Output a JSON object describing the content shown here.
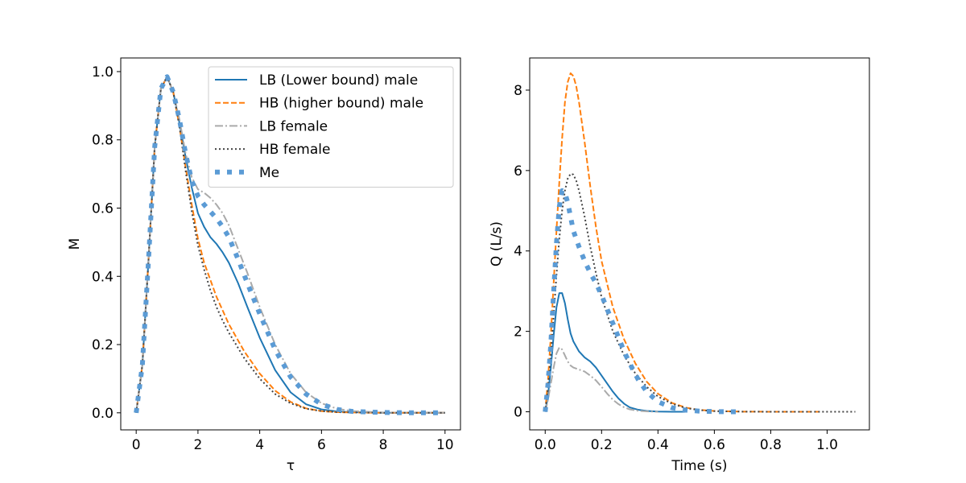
{
  "chart_data": [
    {
      "type": "line",
      "title": "",
      "xlabel": "τ",
      "ylabel": "M",
      "xlim": [
        -0.5,
        10.5
      ],
      "ylim": [
        -0.05,
        1.04
      ],
      "xticks": [
        0,
        2,
        4,
        6,
        8,
        10
      ],
      "xtick_labels": [
        "0",
        "2",
        "4",
        "6",
        "8",
        "10"
      ],
      "yticks": [
        0.0,
        0.2,
        0.4,
        0.6,
        0.8,
        1.0
      ],
      "ytick_labels": [
        "0.0",
        "0.2",
        "0.4",
        "0.6",
        "0.8",
        "1.0"
      ],
      "grid": false,
      "legend_placement": "top-right",
      "series": [
        {
          "name": "LB (Lower bound) male",
          "color": "#1f77b4",
          "dash": "solid",
          "x": [
            0,
            0.2,
            0.4,
            0.6,
            0.8,
            1.0,
            1.2,
            1.4,
            1.6,
            1.8,
            2.0,
            2.2,
            2.4,
            2.6,
            2.8,
            3.0,
            3.3,
            3.6,
            4.0,
            4.5,
            5.0,
            5.5,
            6.0,
            6.5,
            7.0,
            8.0,
            9.0,
            10.0
          ],
          "y": [
            0.0,
            0.14,
            0.45,
            0.78,
            0.95,
            0.985,
            0.94,
            0.85,
            0.75,
            0.66,
            0.585,
            0.545,
            0.515,
            0.495,
            0.47,
            0.44,
            0.38,
            0.31,
            0.22,
            0.125,
            0.06,
            0.025,
            0.01,
            0.004,
            0.002,
            0.0,
            0.0,
            0.0
          ]
        },
        {
          "name": "HB (higher bound) male",
          "color": "#ff7f0e",
          "dash": "dashed",
          "x": [
            0,
            0.2,
            0.4,
            0.6,
            0.8,
            1.0,
            1.2,
            1.4,
            1.6,
            1.8,
            2.0,
            2.2,
            2.4,
            2.6,
            2.8,
            3.0,
            3.5,
            4.0,
            4.5,
            5.0,
            5.5,
            6.0,
            6.5,
            7.0,
            8.0,
            9.0,
            10.0
          ],
          "y": [
            0.0,
            0.14,
            0.45,
            0.78,
            0.95,
            0.985,
            0.94,
            0.84,
            0.72,
            0.61,
            0.51,
            0.44,
            0.39,
            0.34,
            0.3,
            0.26,
            0.18,
            0.115,
            0.065,
            0.032,
            0.013,
            0.005,
            0.002,
            0.001,
            0.0,
            0.0,
            0.0
          ]
        },
        {
          "name": "LB female",
          "color": "#aaaaaa",
          "dash": "dashdot",
          "x": [
            0,
            0.2,
            0.4,
            0.6,
            0.8,
            1.0,
            1.2,
            1.4,
            1.6,
            1.8,
            2.0,
            2.2,
            2.4,
            2.6,
            2.8,
            3.0,
            3.3,
            3.6,
            4.0,
            4.5,
            5.0,
            5.5,
            6.0,
            6.5,
            7.0,
            8.0,
            9.0,
            10.0
          ],
          "y": [
            0.0,
            0.14,
            0.45,
            0.78,
            0.95,
            0.985,
            0.94,
            0.86,
            0.76,
            0.69,
            0.655,
            0.645,
            0.63,
            0.61,
            0.585,
            0.55,
            0.48,
            0.41,
            0.31,
            0.2,
            0.115,
            0.06,
            0.028,
            0.012,
            0.005,
            0.001,
            0.0,
            0.0
          ]
        },
        {
          "name": "HB female",
          "color": "#444444",
          "dash": "dotted",
          "x": [
            0,
            0.2,
            0.4,
            0.6,
            0.8,
            1.0,
            1.2,
            1.4,
            1.6,
            1.8,
            2.0,
            2.2,
            2.4,
            2.6,
            2.8,
            3.0,
            3.5,
            4.0,
            4.5,
            5.0,
            5.5,
            6.0,
            6.5,
            7.0,
            8.0,
            9.0,
            10.0
          ],
          "y": [
            0.0,
            0.14,
            0.45,
            0.78,
            0.95,
            0.985,
            0.94,
            0.84,
            0.71,
            0.59,
            0.49,
            0.42,
            0.36,
            0.31,
            0.27,
            0.235,
            0.16,
            0.1,
            0.055,
            0.028,
            0.012,
            0.005,
            0.002,
            0.001,
            0.0,
            0.0,
            0.0
          ]
        },
        {
          "name": "Me",
          "color": "#5b9bd5",
          "dash": "thickdots",
          "x": [
            0,
            0.2,
            0.4,
            0.6,
            0.8,
            1.0,
            1.2,
            1.4,
            1.6,
            1.8,
            2.0,
            2.2,
            2.4,
            2.6,
            2.8,
            3.0,
            3.3,
            3.6,
            4.0,
            4.5,
            5.0,
            5.5,
            6.0,
            6.5,
            7.0,
            8.0,
            9.0,
            10.0
          ],
          "y": [
            0.0,
            0.14,
            0.45,
            0.78,
            0.95,
            0.985,
            0.94,
            0.86,
            0.76,
            0.68,
            0.635,
            0.61,
            0.59,
            0.57,
            0.545,
            0.515,
            0.45,
            0.38,
            0.29,
            0.185,
            0.105,
            0.055,
            0.025,
            0.01,
            0.004,
            0.001,
            0.0,
            0.0
          ]
        }
      ]
    },
    {
      "type": "line",
      "title": "",
      "xlabel": "Time (s)",
      "ylabel": "Q (L/s)",
      "xlim": [
        -0.055,
        1.15
      ],
      "ylim": [
        -0.45,
        8.8
      ],
      "xticks": [
        0.0,
        0.2,
        0.4,
        0.6,
        0.8,
        1.0
      ],
      "xtick_labels": [
        "0.0",
        "0.2",
        "0.4",
        "0.6",
        "0.8",
        "1.0"
      ],
      "yticks": [
        0,
        2,
        4,
        6,
        8
      ],
      "ytick_labels": [
        "0",
        "2",
        "4",
        "6",
        "8"
      ],
      "grid": false,
      "series": [
        {
          "name": "LB (Lower bound) male",
          "color": "#1f77b4",
          "dash": "solid",
          "x": [
            0,
            0.01,
            0.02,
            0.03,
            0.04,
            0.05,
            0.06,
            0.07,
            0.08,
            0.09,
            0.1,
            0.12,
            0.14,
            0.16,
            0.18,
            0.2,
            0.22,
            0.24,
            0.26,
            0.28,
            0.3,
            0.33,
            0.36,
            0.4,
            0.45,
            0.5
          ],
          "y": [
            0,
            0.4,
            1.1,
            1.9,
            2.6,
            2.95,
            2.95,
            2.7,
            2.3,
            1.95,
            1.75,
            1.5,
            1.35,
            1.25,
            1.1,
            0.9,
            0.7,
            0.5,
            0.33,
            0.2,
            0.11,
            0.05,
            0.02,
            0.005,
            0.001,
            0
          ]
        },
        {
          "name": "HB (higher bound) male",
          "color": "#ff7f0e",
          "dash": "dashed",
          "x": [
            0,
            0.01,
            0.02,
            0.03,
            0.04,
            0.05,
            0.06,
            0.07,
            0.08,
            0.09,
            0.1,
            0.11,
            0.12,
            0.14,
            0.16,
            0.18,
            0.2,
            0.24,
            0.28,
            0.32,
            0.36,
            0.4,
            0.45,
            0.5,
            0.55,
            0.6,
            0.7,
            0.8,
            0.9,
            0.97
          ],
          "y": [
            0,
            0.8,
            1.9,
            3.2,
            4.5,
            5.7,
            6.8,
            7.7,
            8.2,
            8.42,
            8.35,
            8.1,
            7.7,
            6.7,
            5.6,
            4.6,
            3.75,
            2.6,
            1.8,
            1.2,
            0.75,
            0.45,
            0.22,
            0.1,
            0.045,
            0.02,
            0.004,
            0.001,
            0,
            0
          ]
        },
        {
          "name": "LB female",
          "color": "#aaaaaa",
          "dash": "dashdot",
          "x": [
            0,
            0.01,
            0.02,
            0.03,
            0.04,
            0.05,
            0.06,
            0.07,
            0.08,
            0.09,
            0.1,
            0.12,
            0.14,
            0.16,
            0.18,
            0.2,
            0.22,
            0.24,
            0.26,
            0.28,
            0.3,
            0.33,
            0.36,
            0.4
          ],
          "y": [
            0,
            0.3,
            0.7,
            1.1,
            1.45,
            1.6,
            1.55,
            1.4,
            1.25,
            1.15,
            1.1,
            1.05,
            1.0,
            0.9,
            0.78,
            0.62,
            0.45,
            0.3,
            0.19,
            0.11,
            0.06,
            0.025,
            0.01,
            0
          ]
        },
        {
          "name": "HB female",
          "color": "#444444",
          "dash": "dotted",
          "x": [
            0,
            0.01,
            0.02,
            0.03,
            0.04,
            0.05,
            0.06,
            0.07,
            0.08,
            0.09,
            0.1,
            0.11,
            0.12,
            0.14,
            0.16,
            0.18,
            0.2,
            0.24,
            0.28,
            0.32,
            0.36,
            0.4,
            0.45,
            0.5,
            0.55,
            0.6,
            0.7,
            0.8,
            0.9,
            1.0,
            1.1
          ],
          "y": [
            0,
            0.6,
            1.4,
            2.4,
            3.4,
            4.3,
            5.0,
            5.5,
            5.8,
            5.92,
            5.9,
            5.75,
            5.5,
            4.85,
            4.1,
            3.45,
            2.85,
            2.0,
            1.4,
            0.95,
            0.62,
            0.38,
            0.2,
            0.09,
            0.04,
            0.015,
            0.003,
            0.001,
            0,
            0,
            0
          ]
        },
        {
          "name": "Me",
          "color": "#5b9bd5",
          "dash": "thickdots",
          "x": [
            0,
            0.01,
            0.02,
            0.03,
            0.04,
            0.05,
            0.06,
            0.07,
            0.08,
            0.09,
            0.1,
            0.12,
            0.14,
            0.16,
            0.18,
            0.2,
            0.22,
            0.24,
            0.26,
            0.28,
            0.3,
            0.33,
            0.36,
            0.4,
            0.45,
            0.5,
            0.55,
            0.6,
            0.65,
            0.7
          ],
          "y": [
            0,
            0.7,
            1.7,
            3.0,
            4.2,
            5.1,
            5.5,
            5.45,
            5.2,
            4.85,
            4.5,
            4.1,
            3.75,
            3.45,
            3.2,
            2.9,
            2.55,
            2.2,
            1.85,
            1.5,
            1.2,
            0.8,
            0.5,
            0.25,
            0.1,
            0.04,
            0.015,
            0.005,
            0.001,
            0
          ]
        }
      ]
    }
  ]
}
